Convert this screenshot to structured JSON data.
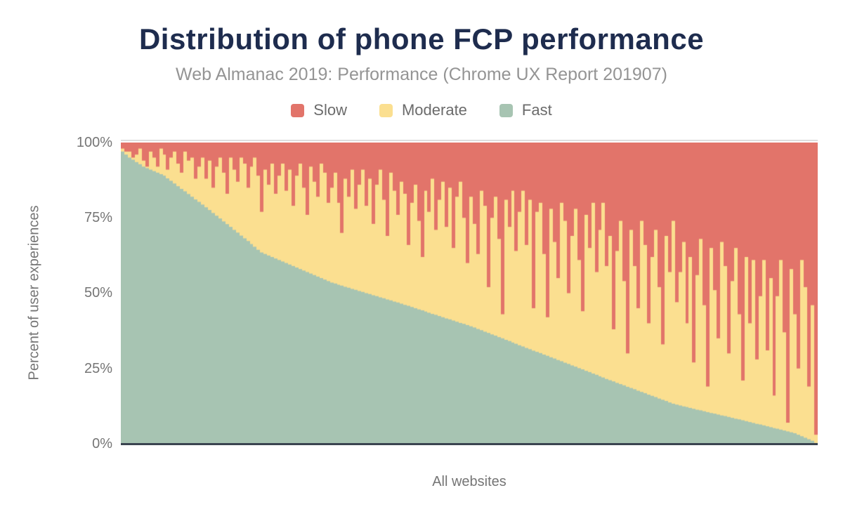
{
  "header": {
    "title": "Distribution of phone FCP performance",
    "subtitle": "Web Almanac 2019: Performance (Chrome UX Report 201907)"
  },
  "legend": {
    "items": [
      {
        "label": "Slow",
        "color": "#e2746a"
      },
      {
        "label": "Moderate",
        "color": "#fbdf90"
      },
      {
        "label": "Fast",
        "color": "#a7c4b2"
      }
    ]
  },
  "axes": {
    "y_title": "Percent of user experiences",
    "y_ticks": [
      "100%",
      "75%",
      "50%",
      "25%",
      "0%"
    ],
    "x_title": "All websites"
  },
  "colors": {
    "title": "#1e2c4e",
    "subtitle": "#949494",
    "axis_text": "#757575",
    "legend_text": "#6b6b6b",
    "gridline": "#dedede",
    "axis_line": "#3a4450",
    "background": "#ffffff"
  },
  "chart_data": {
    "type": "bar",
    "variant": "stacked-percent-column",
    "title": "Distribution of phone FCP performance",
    "subtitle": "Web Almanac 2019: Performance (Chrome UX Report 201907)",
    "xlabel": "All websites",
    "ylabel": "Percent of user experiences",
    "ylim": [
      0,
      100
    ],
    "y_tick_labels": [
      "0%",
      "25%",
      "50%",
      "75%",
      "100%"
    ],
    "grid": "top-gridline-only",
    "legend_position": "top-center",
    "stack_order_bottom_to_top": [
      "Fast",
      "Moderate",
      "Slow"
    ],
    "note": "Each thin column is one website sorted by descending Fast share; values are percent of user experiences estimated from pixels. Moderate is the remainder: 100 - Fast - Slow.",
    "n_bars": 200,
    "series": [
      {
        "name": "Fast",
        "color": "#a7c4b2",
        "values": [
          97,
          96,
          95,
          94.3,
          93.5,
          92.8,
          92,
          91.5,
          91,
          90.5,
          90,
          89.5,
          89,
          88.1,
          87.3,
          86.4,
          85.5,
          84.6,
          83.8,
          82.9,
          82,
          81.1,
          80.3,
          79.4,
          78.5,
          77.6,
          76.6,
          75.7,
          74.8,
          73.8,
          72.9,
          72,
          71,
          70.1,
          69.1,
          68.2,
          67.3,
          66.3,
          65.4,
          64.4,
          63.5,
          63,
          62.5,
          62,
          61.5,
          61,
          60.5,
          60,
          59.5,
          59,
          58.5,
          58,
          57.5,
          57,
          56.5,
          56,
          55.5,
          55,
          54.5,
          54,
          53.5,
          53.2,
          52.8,
          52.5,
          52.1,
          51.8,
          51.4,
          51.1,
          50.7,
          50.4,
          50,
          49.7,
          49.3,
          49,
          48.6,
          48.3,
          47.9,
          47.6,
          47.2,
          46.9,
          46.5,
          46.1,
          45.8,
          45.4,
          45,
          44.6,
          44.3,
          43.9,
          43.5,
          43.1,
          42.8,
          42.4,
          42,
          41.6,
          41.3,
          40.9,
          40.5,
          40.1,
          39.8,
          39.4,
          39,
          38.6,
          38.1,
          37.7,
          37.2,
          36.8,
          36.3,
          35.9,
          35.4,
          35,
          34.5,
          34.1,
          33.6,
          33.2,
          32.7,
          32.3,
          31.8,
          31.4,
          30.9,
          30.5,
          30.1,
          29.6,
          29.2,
          28.7,
          28.3,
          27.8,
          27.4,
          26.9,
          26.5,
          26,
          25.6,
          25.1,
          24.7,
          24.2,
          23.8,
          23.3,
          22.9,
          22.4,
          22,
          21.5,
          21.1,
          20.7,
          20.2,
          19.8,
          19.4,
          18.9,
          18.5,
          18.1,
          17.6,
          17.2,
          16.8,
          16.3,
          15.9,
          15.5,
          15,
          14.6,
          14.2,
          13.7,
          13.3,
          13,
          12.7,
          12.4,
          12.2,
          11.9,
          11.6,
          11.3,
          11.1,
          10.8,
          10.5,
          10.2,
          10,
          9.7,
          9.4,
          9.2,
          8.9,
          8.6,
          8.3,
          8.1,
          7.8,
          7.5,
          7.2,
          6.9,
          6.6,
          6.4,
          6.1,
          5.8,
          5.5,
          5.2,
          5,
          4.7,
          4.4,
          4.1,
          3.8,
          3.5,
          3,
          2.5,
          2,
          1.5,
          1,
          0.3
        ]
      },
      {
        "name": "Slow",
        "color": "#e2746a",
        "values": [
          2,
          3,
          3,
          5,
          4,
          2,
          6,
          8,
          3,
          5,
          8,
          2,
          4,
          9,
          5,
          3,
          7,
          10,
          3,
          6,
          5,
          12,
          8,
          5,
          12,
          6,
          15,
          8,
          5,
          10,
          17,
          5,
          9,
          13,
          5,
          7,
          15,
          8,
          5,
          11,
          23,
          9,
          14,
          7,
          17,
          11,
          7,
          16,
          9,
          21,
          11,
          7,
          15,
          24,
          8,
          13,
          18,
          7,
          10,
          20,
          15,
          10,
          20,
          30,
          12,
          18,
          9,
          22,
          14,
          9,
          21,
          12,
          27,
          14,
          9,
          19,
          31,
          10,
          16,
          24,
          13,
          17,
          34,
          20,
          14,
          26,
          38,
          16,
          23,
          12,
          29,
          19,
          13,
          28,
          15,
          35,
          18,
          13,
          25,
          40,
          18,
          27,
          37,
          16,
          21,
          48,
          25,
          18,
          32,
          57,
          19,
          28,
          16,
          36,
          23,
          16,
          34,
          19,
          55,
          23,
          20,
          37,
          58,
          22,
          33,
          45,
          20,
          26,
          50,
          31,
          22,
          39,
          56,
          24,
          35,
          20,
          43,
          29,
          20,
          41,
          31,
          62,
          36,
          26,
          46,
          70,
          29,
          41,
          55,
          26,
          34,
          60,
          38,
          29,
          48,
          67,
          31,
          43,
          26,
          53,
          43,
          33,
          60,
          38,
          73,
          44,
          32,
          54,
          81,
          35,
          49,
          65,
          33,
          41,
          70,
          46,
          35,
          57,
          79,
          38,
          60,
          39,
          72,
          51,
          39,
          69,
          45,
          84,
          51,
          39,
          63,
          93,
          42,
          57,
          75,
          39,
          48,
          81,
          54,
          97
        ]
      },
      {
        "name": "Moderate",
        "color": "#fbdf90",
        "values_note": "remainder: 100 - Fast - Slow for each bar"
      }
    ]
  }
}
